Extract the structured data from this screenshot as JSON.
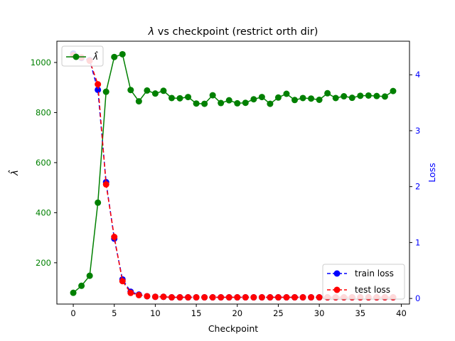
{
  "chart_data": {
    "type": "line",
    "title": "λ vs checkpoint (restrict orth dir)",
    "title_parts": {
      "symbol": "λ",
      "rest": " vs checkpoint (restrict orth dir)"
    },
    "xlabel": "Checkpoint",
    "ylabel_left": "λ̂",
    "ylabel_right": "Loss",
    "xlim": [
      -2,
      41
    ],
    "ylim_left": [
      35,
      1085
    ],
    "ylim_right": [
      -0.1,
      4.6
    ],
    "xticks": [
      0,
      5,
      10,
      15,
      20,
      25,
      30,
      35,
      40
    ],
    "yticks_left": [
      200,
      400,
      600,
      800,
      1000
    ],
    "yticks_right": [
      0,
      1,
      2,
      3,
      4
    ],
    "grid": false,
    "colors": {
      "lambda": "#008000",
      "train": "#0000ff",
      "test": "#ff0000",
      "right_axis": "#0000ff"
    },
    "legend_left": {
      "placement": "top-left",
      "label": "λ̂"
    },
    "legend_right": {
      "placement": "lower-right",
      "labels": [
        "train loss",
        "test loss"
      ]
    },
    "x": [
      0,
      1,
      2,
      3,
      4,
      5,
      6,
      7,
      8,
      9,
      10,
      11,
      12,
      13,
      14,
      15,
      16,
      17,
      18,
      19,
      20,
      21,
      22,
      23,
      24,
      25,
      26,
      27,
      28,
      29,
      30,
      31,
      32,
      33,
      34,
      35,
      36,
      37,
      38,
      39
    ],
    "series": [
      {
        "name": "λ̂",
        "axis": "left",
        "values": [
          80,
          108,
          148,
          440,
          883,
          1022,
          1033,
          890,
          845,
          888,
          876,
          887,
          858,
          857,
          862,
          836,
          835,
          869,
          838,
          849,
          837,
          839,
          853,
          862,
          835,
          860,
          875,
          850,
          858,
          856,
          851,
          877,
          858,
          865,
          859,
          867,
          868,
          866,
          864,
          886
        ]
      },
      {
        "name": "train loss",
        "axis": "right",
        "values": [
          4.38,
          4.3,
          4.26,
          3.73,
          2.08,
          1.07,
          0.34,
          0.12,
          0.07,
          0.04,
          0.03,
          0.03,
          0.02,
          0.02,
          0.02,
          0.02,
          0.02,
          0.02,
          0.02,
          0.02,
          0.02,
          0.02,
          0.02,
          0.02,
          0.02,
          0.02,
          0.02,
          0.02,
          0.02,
          0.02,
          0.02,
          0.02,
          0.02,
          0.02,
          0.02,
          0.02,
          0.02,
          0.02,
          0.02,
          0.02
        ]
      },
      {
        "name": "test loss",
        "axis": "right",
        "values": [
          4.35,
          4.31,
          4.25,
          3.83,
          2.04,
          1.1,
          0.31,
          0.1,
          0.06,
          0.04,
          0.03,
          0.03,
          0.02,
          0.02,
          0.02,
          0.02,
          0.02,
          0.02,
          0.02,
          0.02,
          0.02,
          0.02,
          0.02,
          0.02,
          0.02,
          0.02,
          0.02,
          0.02,
          0.02,
          0.02,
          0.02,
          0.02,
          0.02,
          0.02,
          0.02,
          0.02,
          0.02,
          0.02,
          0.02,
          0.02
        ]
      }
    ]
  }
}
